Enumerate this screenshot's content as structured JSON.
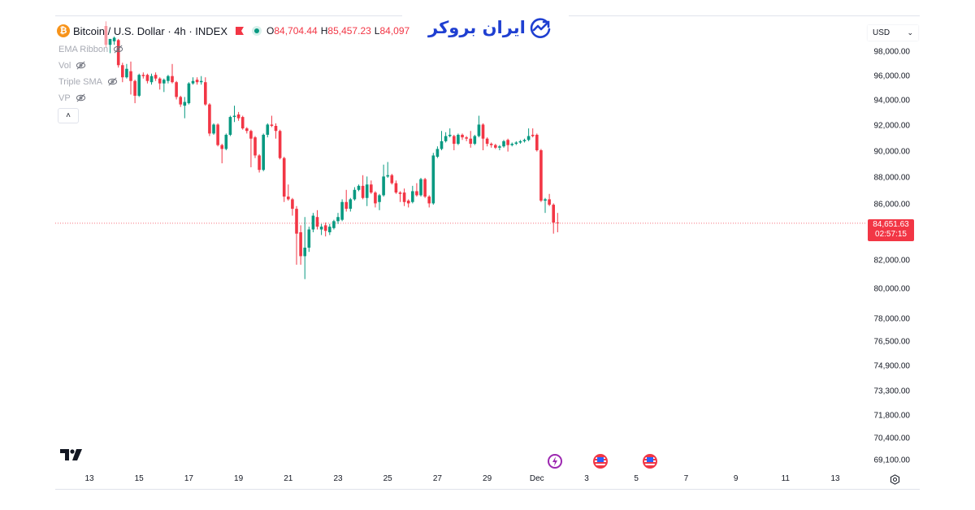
{
  "header": {
    "symbol_title": "Bitcoin / U.S. Dollar · 4h · INDEX",
    "symbol_icon": "bitcoin-icon",
    "ohlc": {
      "o_label": "O",
      "o": "84,704.44",
      "h_label": "H",
      "h": "85,457.23",
      "l_label": "L",
      "l": "84,097"
    }
  },
  "indicators": [
    {
      "label": "EMA Ribbon",
      "icon": "eye-off-icon"
    },
    {
      "label": "Vol",
      "icon": "eye-off-icon"
    },
    {
      "label": "Triple SMA",
      "icon": "eye-off-icon"
    },
    {
      "label": "VP",
      "icon": "eye-off-icon"
    }
  ],
  "collapse_label": "˄",
  "logo_text": "ایران بروکر",
  "currency": {
    "selected": "USD"
  },
  "last_price": {
    "price": "84,651.63",
    "countdown": "02:57:15",
    "value": 84651.63
  },
  "colors": {
    "up": "#089981",
    "down": "#f23645",
    "accent": "#1f3fd1",
    "last_price": "#f23645"
  },
  "chart_data": {
    "type": "candlestick",
    "interval": "4h",
    "start": "Nov 13 16:00",
    "y_scale": "log",
    "ylim": [
      68500,
      101000
    ],
    "grid": false,
    "y_ticks": [
      {
        "v": 98000,
        "label": "98,000.00"
      },
      {
        "v": 96000,
        "label": "96,000.00"
      },
      {
        "v": 94000,
        "label": "94,000.00"
      },
      {
        "v": 92000,
        "label": "92,000.00"
      },
      {
        "v": 90000,
        "label": "90,000.00"
      },
      {
        "v": 88000,
        "label": "88,000.00"
      },
      {
        "v": 86000,
        "label": "86,000.00"
      },
      {
        "v": 82000,
        "label": "82,000.00"
      },
      {
        "v": 80000,
        "label": "80,000.00"
      },
      {
        "v": 78000,
        "label": "78,000.00"
      },
      {
        "v": 76500,
        "label": "76,500.00"
      },
      {
        "v": 74900,
        "label": "74,900.00"
      },
      {
        "v": 73300,
        "label": "73,300.00"
      },
      {
        "v": 71800,
        "label": "71,800.00"
      },
      {
        "v": 70400,
        "label": "70,400.00"
      },
      {
        "v": 69100,
        "label": "69,100.00"
      }
    ],
    "x_ticks": [
      "13",
      "15",
      "17",
      "19",
      "21",
      "23",
      "25",
      "27",
      "29",
      "Dec",
      "3",
      "5",
      "7",
      "9",
      "11",
      "13"
    ],
    "ohlc": [
      [
        100200,
        100600,
        98400,
        98600
      ],
      [
        98600,
        99100,
        97900,
        99100
      ],
      [
        98900,
        99300,
        98600,
        99200
      ],
      [
        99000,
        99100,
        96700,
        96900
      ],
      [
        96900,
        97100,
        95500,
        95900
      ],
      [
        95900,
        97000,
        95800,
        96600
      ],
      [
        96400,
        97200,
        94500,
        95600
      ],
      [
        95600,
        95700,
        93800,
        94400
      ],
      [
        94400,
        96200,
        94300,
        96100
      ],
      [
        96100,
        96300,
        95800,
        96000
      ],
      [
        96100,
        96200,
        95400,
        95600
      ],
      [
        95500,
        96200,
        95300,
        96000
      ],
      [
        96100,
        96300,
        95600,
        95800
      ],
      [
        95800,
        95900,
        94900,
        95400
      ],
      [
        95400,
        95800,
        94700,
        95700
      ],
      [
        95600,
        96100,
        95400,
        96000
      ],
      [
        96000,
        97000,
        95400,
        95500
      ],
      [
        95500,
        95600,
        94100,
        94300
      ],
      [
        94300,
        94400,
        93500,
        93700
      ],
      [
        93600,
        94300,
        92600,
        93900
      ],
      [
        93800,
        95500,
        93700,
        95400
      ],
      [
        95400,
        95900,
        95300,
        95600
      ],
      [
        95700,
        95900,
        95300,
        95500
      ],
      [
        95500,
        96000,
        95300,
        95600
      ],
      [
        95500,
        95900,
        93600,
        93700
      ],
      [
        93700,
        93800,
        91200,
        91400
      ],
      [
        91400,
        92200,
        91300,
        92100
      ],
      [
        92100,
        92200,
        90400,
        90500
      ],
      [
        90500,
        90600,
        89100,
        90200
      ],
      [
        90200,
        91400,
        90100,
        91300
      ],
      [
        91300,
        92800,
        91200,
        92700
      ],
      [
        92700,
        93600,
        92300,
        92800
      ],
      [
        92900,
        93100,
        92400,
        92600
      ],
      [
        92700,
        92800,
        91700,
        91800
      ],
      [
        91800,
        91900,
        91400,
        91600
      ],
      [
        91600,
        91700,
        88800,
        91000
      ],
      [
        91100,
        91200,
        89500,
        89700
      ],
      [
        89700,
        89800,
        88400,
        88600
      ],
      [
        88600,
        91400,
        88500,
        91300
      ],
      [
        91300,
        92200,
        91100,
        92100
      ],
      [
        92100,
        92800,
        91900,
        92000
      ],
      [
        92000,
        92200,
        91000,
        91600
      ],
      [
        91600,
        91700,
        89400,
        89500
      ],
      [
        89500,
        89600,
        86200,
        86600
      ],
      [
        86600,
        87500,
        86300,
        86400
      ],
      [
        86400,
        86500,
        85200,
        85700
      ],
      [
        85700,
        85900,
        81700,
        83900
      ],
      [
        84000,
        84500,
        81700,
        82300
      ],
      [
        82300,
        85100,
        80700,
        82900
      ],
      [
        82900,
        84400,
        82600,
        84200
      ],
      [
        84200,
        85400,
        84000,
        85200
      ],
      [
        85100,
        85600,
        84200,
        84400
      ],
      [
        84200,
        84600,
        83800,
        84400
      ],
      [
        84500,
        84700,
        83700,
        84100
      ],
      [
        84000,
        84600,
        83800,
        84400
      ],
      [
        84300,
        84900,
        84200,
        84800
      ],
      [
        84800,
        85400,
        84600,
        85100
      ],
      [
        84900,
        86400,
        84800,
        86200
      ],
      [
        86200,
        87100,
        85500,
        85700
      ],
      [
        85700,
        86500,
        85500,
        86400
      ],
      [
        86400,
        87300,
        86300,
        87100
      ],
      [
        87100,
        87500,
        87000,
        87400
      ],
      [
        87400,
        88200,
        86400,
        86500
      ],
      [
        86500,
        88100,
        85900,
        87500
      ],
      [
        87500,
        87800,
        86800,
        86900
      ],
      [
        86900,
        87000,
        85800,
        86100
      ],
      [
        86200,
        86800,
        85600,
        86700
      ],
      [
        86700,
        89000,
        86600,
        88100
      ],
      [
        88100,
        89200,
        88000,
        88200
      ],
      [
        88200,
        88300,
        87500,
        87600
      ],
      [
        87600,
        87800,
        86800,
        86900
      ],
      [
        86900,
        87000,
        86200,
        86800
      ],
      [
        86900,
        87200,
        85900,
        86200
      ],
      [
        86300,
        86400,
        85800,
        86100
      ],
      [
        86200,
        87400,
        86100,
        87000
      ],
      [
        87000,
        87600,
        86600,
        86700
      ],
      [
        86700,
        88000,
        86600,
        87900
      ],
      [
        87900,
        88000,
        86500,
        86600
      ],
      [
        86600,
        86700,
        85800,
        86100
      ],
      [
        86100,
        89900,
        86000,
        89700
      ],
      [
        89600,
        90400,
        89500,
        90200
      ],
      [
        90200,
        91600,
        90100,
        90800
      ],
      [
        90800,
        91500,
        90700,
        91200
      ],
      [
        91200,
        91800,
        91100,
        91300
      ],
      [
        91200,
        91300,
        90100,
        90600
      ],
      [
        90600,
        91400,
        90500,
        91300
      ],
      [
        91300,
        91400,
        90900,
        91100
      ],
      [
        91100,
        91200,
        90800,
        91000
      ],
      [
        91000,
        91600,
        90300,
        90600
      ],
      [
        90600,
        91300,
        90500,
        91200
      ],
      [
        91200,
        92800,
        91100,
        92100
      ],
      [
        92100,
        92200,
        90100,
        91000
      ],
      [
        91000,
        91100,
        90400,
        90600
      ],
      [
        90600,
        90700,
        90300,
        90500
      ],
      [
        90500,
        90600,
        90200,
        90300
      ],
      [
        90300,
        90500,
        90100,
        90400
      ],
      [
        90400,
        90900,
        90300,
        90800
      ],
      [
        90900,
        91000,
        90000,
        90500
      ],
      [
        90500,
        90700,
        90400,
        90600
      ],
      [
        90600,
        90800,
        90500,
        90700
      ],
      [
        90700,
        90900,
        90600,
        90800
      ],
      [
        90800,
        91000,
        90700,
        90900
      ],
      [
        90900,
        91800,
        90800,
        91200
      ],
      [
        91300,
        91800,
        91100,
        91200
      ],
      [
        91300,
        91400,
        90000,
        90100
      ],
      [
        90100,
        90200,
        86200,
        86300
      ],
      [
        86300,
        86500,
        85400,
        86400
      ],
      [
        86400,
        86800,
        85900,
        86000
      ],
      [
        86000,
        86100,
        83900,
        84700
      ],
      [
        84700,
        85400,
        84000,
        84650
      ]
    ]
  },
  "events": [
    {
      "icon": "lightning-event-icon"
    },
    {
      "icon": "us-flag-event-icon"
    },
    {
      "icon": "us-flag-event-icon"
    }
  ],
  "settings_icon": "gear-icon",
  "brand_icon": "tradingview-logo"
}
